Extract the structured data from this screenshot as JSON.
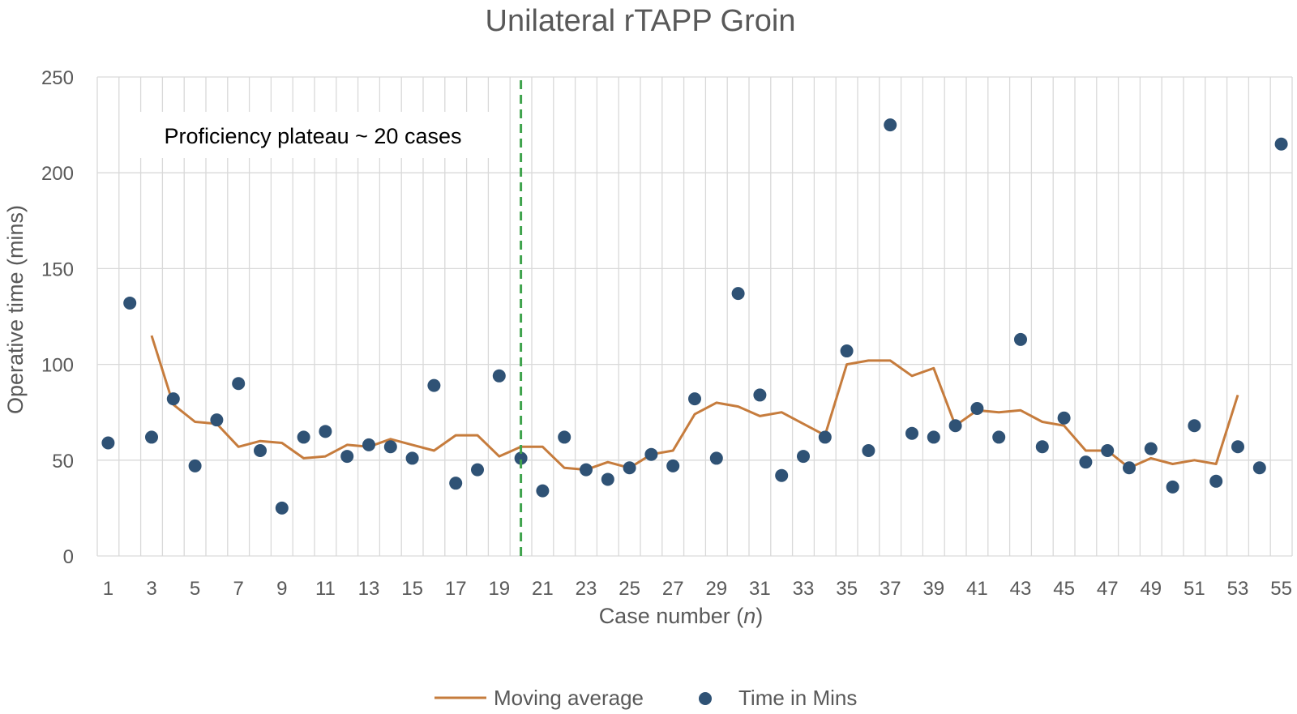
{
  "chart_data": {
    "type": "scatter",
    "title": "Unilateral rTAPP Groin",
    "xlabel_prefix": "Case number (",
    "xlabel_var": "n",
    "xlabel_suffix": ")",
    "ylabel": "Operative time (mins)",
    "xlim": [
      1,
      55
    ],
    "ylim": [
      0,
      250
    ],
    "y_ticks": [
      0,
      50,
      100,
      150,
      200,
      250
    ],
    "x_tick_labels": [
      "1",
      "3",
      "5",
      "7",
      "9",
      "11",
      "13",
      "15",
      "17",
      "19",
      "21",
      "23",
      "25",
      "27",
      "29",
      "31",
      "33",
      "35",
      "37",
      "39",
      "41",
      "43",
      "45",
      "47",
      "49",
      "51",
      "53",
      "55"
    ],
    "grid": "on",
    "legend_position": "bottom",
    "annotation": {
      "text": "Proficiency plateau ~ 20 cases",
      "reference_line_x": 20,
      "reference_line_color": "#3fa34d"
    },
    "series": [
      {
        "name": "Moving average",
        "kind": "line",
        "color": "#c67c3d",
        "x": [
          3,
          4,
          5,
          6,
          7,
          8,
          9,
          10,
          11,
          12,
          13,
          14,
          15,
          16,
          17,
          18,
          19,
          20,
          21,
          22,
          23,
          24,
          25,
          26,
          27,
          28,
          29,
          30,
          31,
          32,
          33,
          34,
          35,
          36,
          37,
          38,
          39,
          40,
          41,
          42,
          43,
          44,
          45,
          46,
          47,
          48,
          49,
          50,
          51,
          52,
          53
        ],
        "values": [
          115,
          79,
          70,
          69,
          57,
          60,
          59,
          51,
          52,
          58,
          57,
          61,
          58,
          55,
          63,
          63,
          52,
          57,
          57,
          46,
          45,
          49,
          46,
          53,
          55,
          74,
          80,
          78,
          73,
          75,
          69,
          63,
          100,
          102,
          102,
          94,
          98,
          68,
          76,
          75,
          76,
          70,
          68,
          55,
          55,
          46,
          51,
          48,
          50,
          48,
          84
        ]
      },
      {
        "name": "Time in Mins",
        "kind": "scatter",
        "color": "#2f5275",
        "x": [
          1,
          2,
          3,
          4,
          5,
          6,
          7,
          8,
          9,
          10,
          11,
          12,
          13,
          14,
          15,
          16,
          17,
          18,
          19,
          20,
          21,
          22,
          23,
          24,
          25,
          26,
          27,
          28,
          29,
          30,
          31,
          32,
          33,
          34,
          35,
          36,
          37,
          38,
          39,
          40,
          41,
          42,
          43,
          44,
          45,
          46,
          47,
          48,
          49,
          50,
          51,
          52,
          53,
          54,
          55
        ],
        "values": [
          59,
          132,
          62,
          82,
          47,
          71,
          90,
          55,
          25,
          62,
          65,
          52,
          58,
          57,
          51,
          89,
          38,
          45,
          94,
          51,
          34,
          62,
          45,
          40,
          46,
          53,
          47,
          82,
          51,
          137,
          84,
          42,
          52,
          62,
          107,
          55,
          225,
          64,
          62,
          68,
          77,
          62,
          113,
          57,
          72,
          49,
          55,
          46,
          56,
          36,
          68,
          39,
          57,
          46,
          215
        ]
      }
    ]
  }
}
